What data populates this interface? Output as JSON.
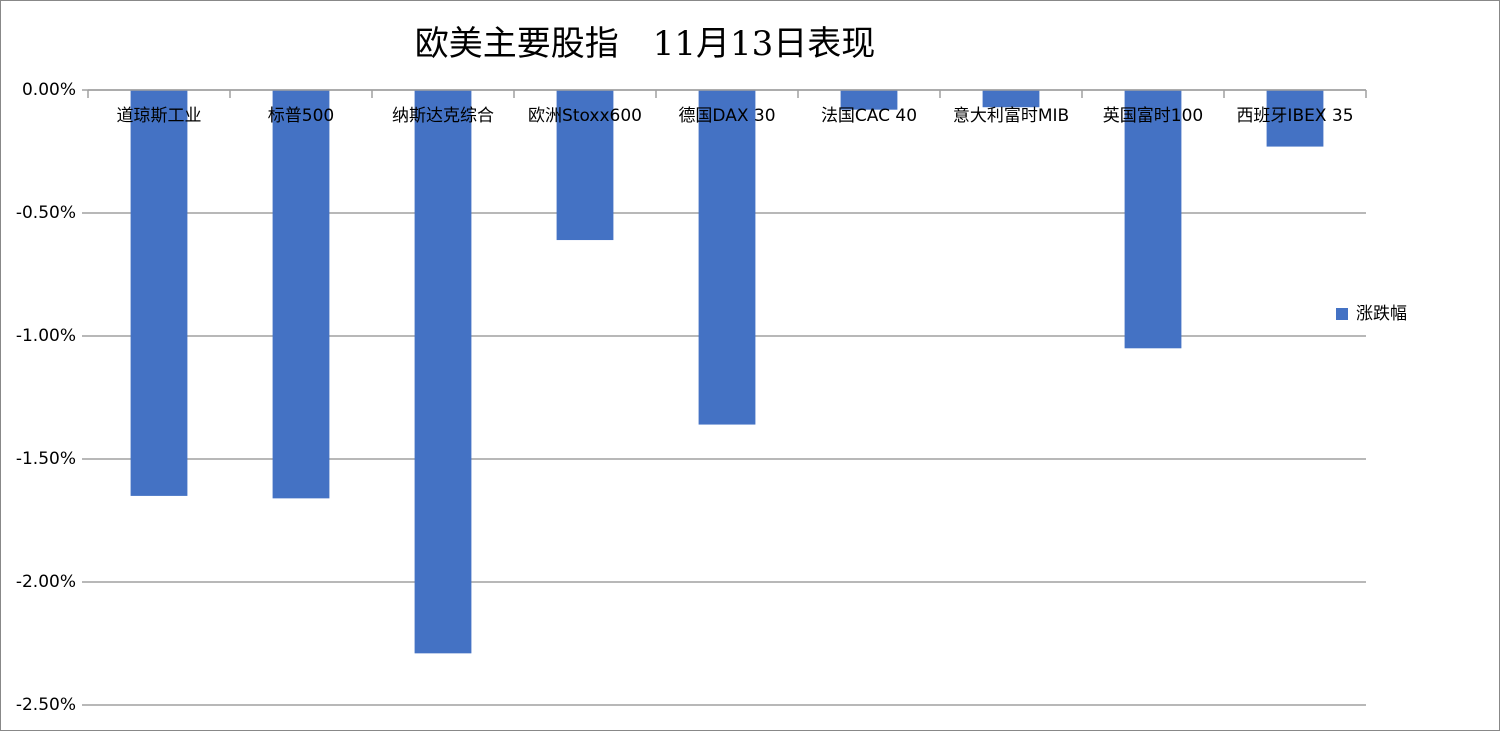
{
  "chart_data": {
    "type": "bar",
    "title": "欧美主要股指　11月13日表现",
    "categories": [
      "道琼斯工业",
      "标普500",
      "纳斯达克综合",
      "欧洲Stoxx600",
      "德国DAX 30",
      "法国CAC 40",
      "意大利富时MIB",
      "英国富时100",
      "西班牙IBEX 35"
    ],
    "series": [
      {
        "name": "涨跌幅",
        "color": "#4472c4",
        "values": [
          -1.65,
          -1.66,
          -2.29,
          -0.61,
          -1.36,
          -0.08,
          -0.07,
          -1.05,
          -0.23
        ]
      }
    ],
    "ylim": [
      -2.5,
      0
    ],
    "yticks": [
      {
        "value": -2.5,
        "label": "-2.50%"
      },
      {
        "value": -2,
        "label": "-2.00%"
      },
      {
        "value": -1.5,
        "label": "-1.50%"
      },
      {
        "value": -1,
        "label": "-1.00%"
      },
      {
        "value": -0.5,
        "label": "-0.50%"
      },
      {
        "value": 0,
        "label": "0.00%"
      }
    ],
    "grid": true,
    "legend": "right"
  }
}
